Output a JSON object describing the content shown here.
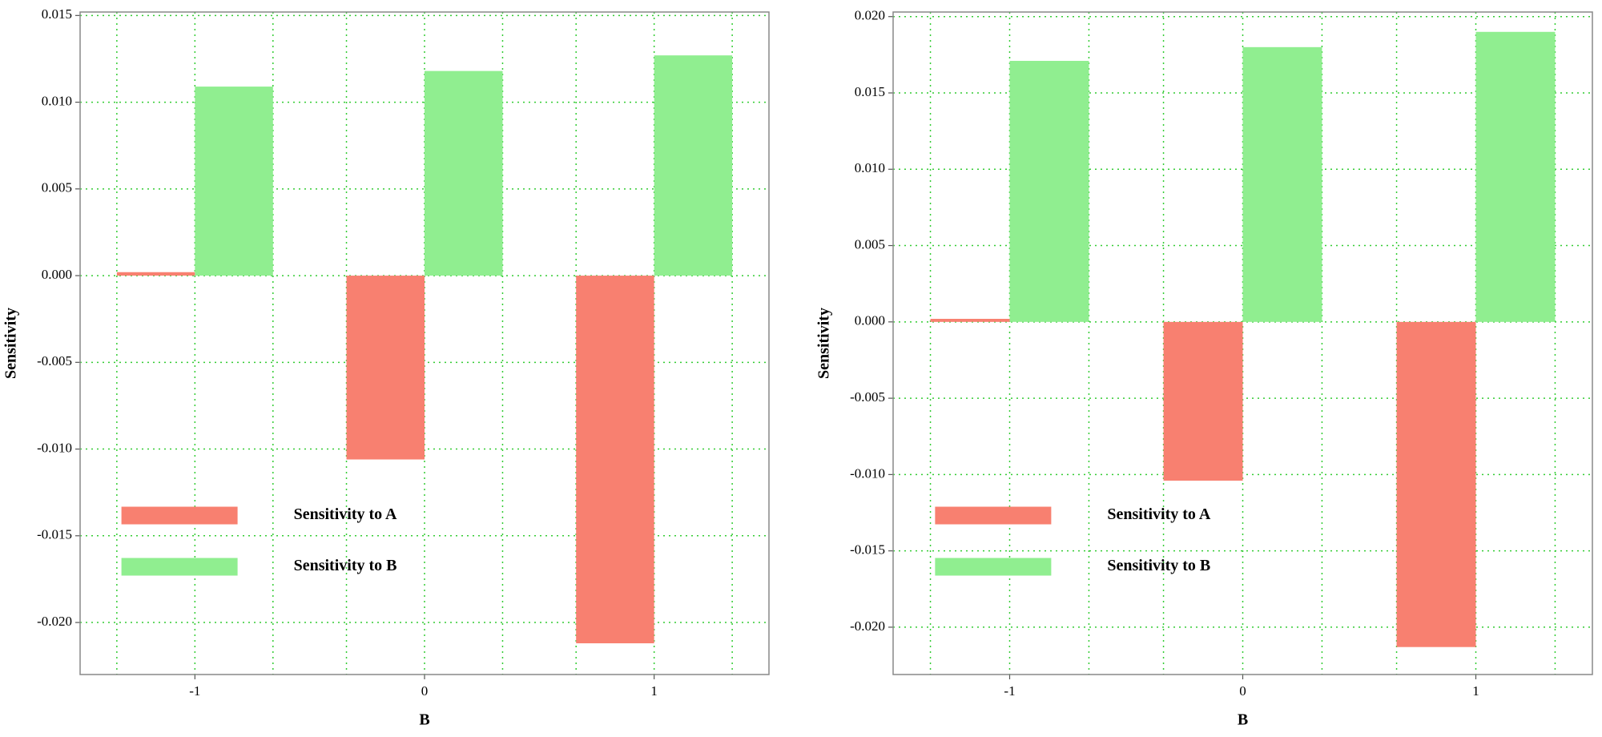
{
  "chart_data": [
    {
      "type": "bar",
      "x_label": "B",
      "y_label": "Sensitivity",
      "categories": [
        "-1",
        "0",
        "1"
      ],
      "series": [
        {
          "name": "Sensitivity to A",
          "color": "#f88070",
          "values": [
            0.0002,
            -0.0106,
            -0.0212
          ]
        },
        {
          "name": "Sensitivity to B",
          "color": "#90ee90",
          "values": [
            0.0109,
            0.0118,
            0.0127
          ]
        }
      ],
      "ylim": [
        -0.023,
        0.0152
      ],
      "yticks": [
        {
          "value": -0.02,
          "label": "-0.020"
        },
        -0.015,
        {
          "value": -0.01,
          "label": "-0.010"
        },
        -0.005,
        {
          "value": 0,
          "label": "0.000"
        },
        0.005,
        {
          "value": 0.01,
          "label": "0.010"
        },
        0.015
      ],
      "grid": true,
      "legend": "lower left"
    },
    {
      "type": "bar",
      "x_label": "B",
      "y_label": "Sensitivity",
      "categories": [
        "-1",
        "0",
        "1"
      ],
      "series": [
        {
          "name": "Sensitivity to A",
          "color": "#f88070",
          "values": [
            0.0002,
            -0.0104,
            -0.0213
          ]
        },
        {
          "name": "Sensitivity to B",
          "color": "#90ee90",
          "values": [
            0.0171,
            0.018,
            0.019
          ]
        }
      ],
      "ylim": [
        -0.0231,
        0.0203
      ],
      "yticks": [
        {
          "value": -0.02,
          "label": "-0.020"
        },
        -0.015,
        {
          "value": -0.01,
          "label": "-0.010"
        },
        -0.005,
        {
          "value": 0,
          "label": "0.000"
        },
        0.005,
        {
          "value": 0.01,
          "label": "0.010"
        },
        0.015,
        {
          "value": 0.02,
          "label": "0.020"
        }
      ],
      "grid": true,
      "legend": "lower left"
    }
  ]
}
